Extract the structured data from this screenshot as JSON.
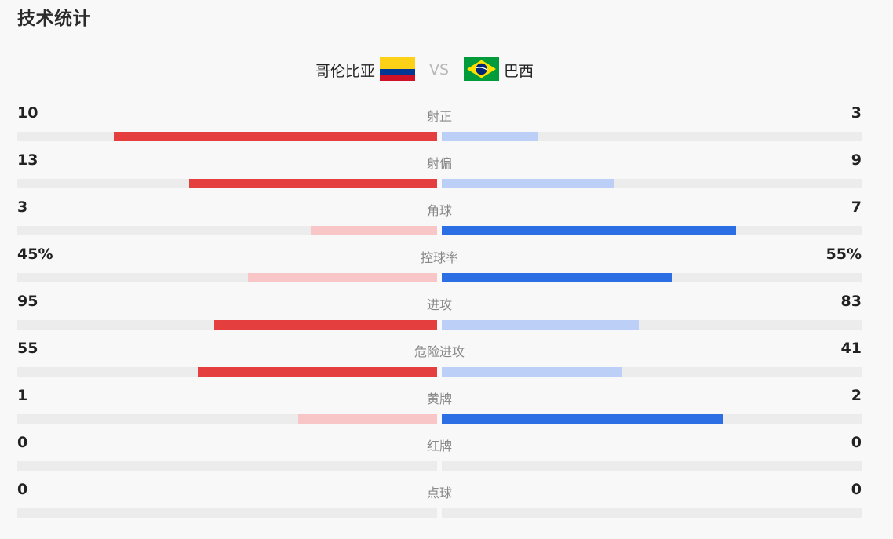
{
  "page_title": "技术统计",
  "teams": {
    "home": {
      "name": "哥伦比亚",
      "flag_icon": "colombia-flag-icon"
    },
    "vs": "VS",
    "away": {
      "name": "巴西",
      "flag_icon": "brazil-flag-icon"
    }
  },
  "colors": {
    "home_strong": "#e53e3e",
    "home_weak": "#f8c6c6",
    "away_strong": "#2c6fe5",
    "away_weak": "#bcd0f7",
    "track": "#ececec"
  },
  "stats": [
    {
      "label": "射正",
      "home": "10",
      "away": "3",
      "home_frac": 0.77,
      "away_frac": 0.23
    },
    {
      "label": "射偏",
      "home": "13",
      "away": "9",
      "home_frac": 0.59,
      "away_frac": 0.41
    },
    {
      "label": "角球",
      "home": "3",
      "away": "7",
      "home_frac": 0.3,
      "away_frac": 0.7
    },
    {
      "label": "控球率",
      "home": "45%",
      "away": "55%",
      "home_frac": 0.45,
      "away_frac": 0.55
    },
    {
      "label": "进攻",
      "home": "95",
      "away": "83",
      "home_frac": 0.53,
      "away_frac": 0.47
    },
    {
      "label": "危险进攻",
      "home": "55",
      "away": "41",
      "home_frac": 0.57,
      "away_frac": 0.43
    },
    {
      "label": "黄牌",
      "home": "1",
      "away": "2",
      "home_frac": 0.33,
      "away_frac": 0.67
    },
    {
      "label": "红牌",
      "home": "0",
      "away": "0",
      "home_frac": 0,
      "away_frac": 0
    },
    {
      "label": "点球",
      "home": "0",
      "away": "0",
      "home_frac": 0,
      "away_frac": 0
    }
  ]
}
